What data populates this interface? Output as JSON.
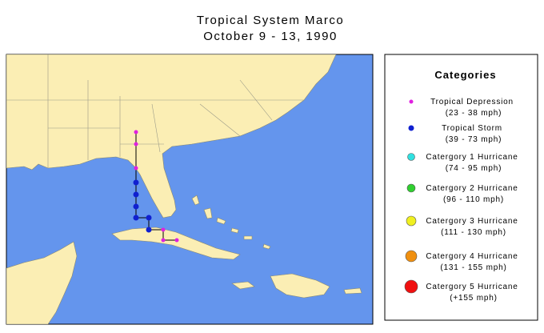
{
  "header": {
    "title": "Tropical System Marco",
    "subtitle": "October 9 - 13, 1990"
  },
  "legend": {
    "title": "Categories",
    "items": [
      {
        "name": "Tropical Depression",
        "range": "(23 - 38 mph)",
        "color": "#e020e0"
      },
      {
        "name": "Tropical Storm",
        "range": "(39 - 73 mph)",
        "color": "#1020d0"
      },
      {
        "name": "Catergory 1 Hurricane",
        "range": "(74 - 95 mph)",
        "color": "#30e0e0"
      },
      {
        "name": "Catergory 2 Hurricane",
        "range": "(96 - 110 mph)",
        "color": "#30d030"
      },
      {
        "name": "Catergory 3 Hurricane",
        "range": "(111 - 130 mph)",
        "color": "#f0f020"
      },
      {
        "name": "Catergory 4 Hurricane",
        "range": "(131 - 155 mph)",
        "color": "#f09010"
      },
      {
        "name": "Catergory 5 Hurricane",
        "range": "(+155 mph)",
        "color": "#f01010"
      }
    ]
  }
}
